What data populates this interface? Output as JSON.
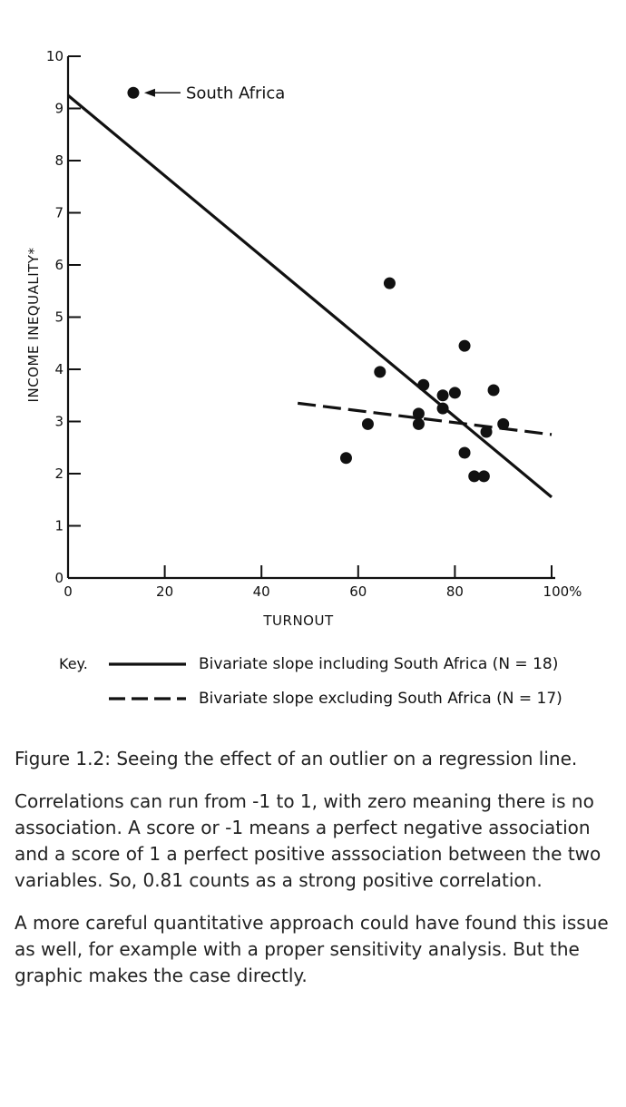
{
  "chart_data": {
    "type": "scatter",
    "xlabel": "TURNOUT",
    "ylabel": "INCOME INEQUALITY*",
    "xlim": [
      0,
      100
    ],
    "ylim": [
      0,
      10
    ],
    "x_ticks": [
      {
        "value": 0,
        "label": "0"
      },
      {
        "value": 20,
        "label": "20"
      },
      {
        "value": 40,
        "label": "40"
      },
      {
        "value": 60,
        "label": "60"
      },
      {
        "value": 80,
        "label": "80"
      },
      {
        "value": 100,
        "label": "100%"
      }
    ],
    "y_ticks": [
      {
        "value": 0,
        "label": "0"
      },
      {
        "value": 1,
        "label": "1"
      },
      {
        "value": 2,
        "label": "2"
      },
      {
        "value": 3,
        "label": "3"
      },
      {
        "value": 4,
        "label": "4"
      },
      {
        "value": 5,
        "label": "5"
      },
      {
        "value": 6,
        "label": "6"
      },
      {
        "value": 7,
        "label": "7"
      },
      {
        "value": 8,
        "label": "8"
      },
      {
        "value": 9,
        "label": "9"
      },
      {
        "value": 10,
        "label": "10"
      }
    ],
    "points": [
      {
        "x": 13.5,
        "y": 9.3
      },
      {
        "x": 57.5,
        "y": 2.3
      },
      {
        "x": 62,
        "y": 2.95
      },
      {
        "x": 64.5,
        "y": 3.95
      },
      {
        "x": 66.5,
        "y": 5.65
      },
      {
        "x": 72.5,
        "y": 3.15
      },
      {
        "x": 72.5,
        "y": 2.95
      },
      {
        "x": 73.5,
        "y": 3.7
      },
      {
        "x": 77.5,
        "y": 3.5
      },
      {
        "x": 77.5,
        "y": 3.25
      },
      {
        "x": 80,
        "y": 3.55
      },
      {
        "x": 82,
        "y": 4.45
      },
      {
        "x": 82,
        "y": 2.4
      },
      {
        "x": 84,
        "y": 1.95
      },
      {
        "x": 86,
        "y": 1.95
      },
      {
        "x": 86.5,
        "y": 2.8
      },
      {
        "x": 88,
        "y": 3.6
      },
      {
        "x": 90,
        "y": 2.95
      }
    ],
    "lines": [
      {
        "name": "Bivariate slope including South Africa (N = 18)",
        "style": "solid",
        "x": [
          0,
          100
        ],
        "y": [
          9.25,
          1.55
        ]
      },
      {
        "name": "Bivariate slope excluding South Africa (N = 17)",
        "style": "dashed",
        "x": [
          47.5,
          100
        ],
        "y": [
          3.35,
          2.75
        ]
      }
    ],
    "annotations": [
      {
        "text": "South Africa",
        "x": 13.5,
        "y": 9.3
      }
    ],
    "legend": {
      "title": "Key.",
      "entries": [
        {
          "style": "solid",
          "label": "Bivariate slope including South Africa (N = 18)"
        },
        {
          "style": "dashed",
          "label": "Bivariate slope excluding South Africa (N = 17)"
        }
      ]
    }
  },
  "caption": "Figure 1.2: Seeing the effect of an outlier on a regression line.",
  "paragraphs": [
    "Correlations can run from -1 to 1, with zero meaning there is no association. A score or -1 means a perfect negative association and a score of 1 a perfect positive asssociation between the two variables. So, 0.81 counts as a strong positive correlation.",
    "A more careful quantitative approach could have found this issue as well, for example with a proper sensitivity analysis. But the graphic makes the case directly."
  ]
}
